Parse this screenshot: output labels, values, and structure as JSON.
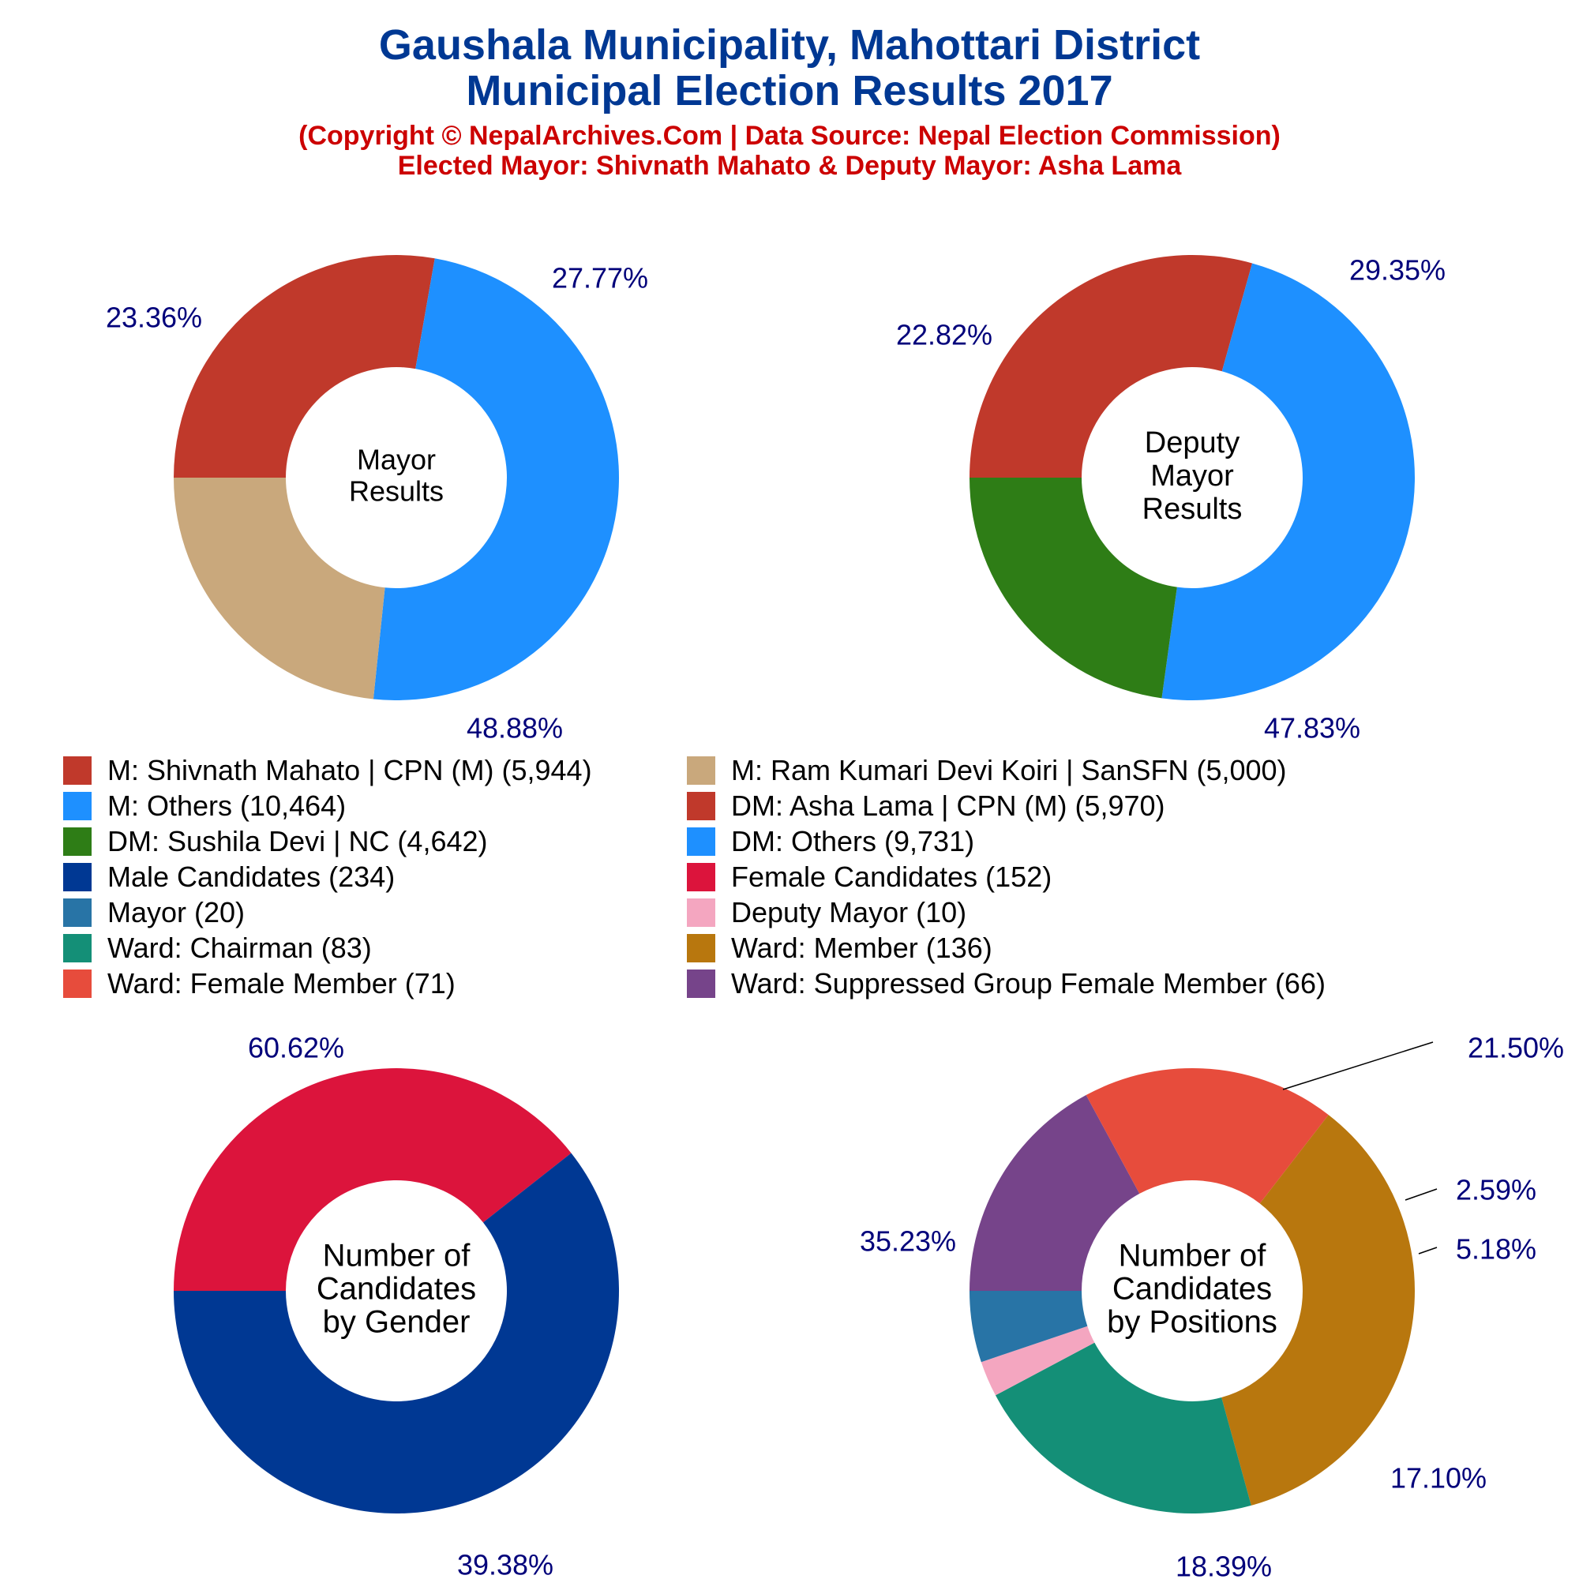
{
  "header": {
    "title_line1": "Gaushala Municipality, Mahottari District",
    "title_line2": "Municipal Election Results 2017",
    "subtitle_line1": "(Copyright © NepalArchives.Com | Data Source: Nepal Election Commission)",
    "subtitle_line2": "Elected Mayor: Shivnath Mahato & Deputy Mayor: Asha Lama"
  },
  "chart_data": [
    {
      "type": "pie",
      "title": "Mayor Results",
      "center_label": [
        "Mayor",
        "Results"
      ],
      "slices": [
        {
          "label": "M: Shivnath Mahato | CPN (M)",
          "value": 5944,
          "percent_label": "27.77%",
          "color": "#c0392b"
        },
        {
          "label": "M: Others",
          "value": 10464,
          "percent_label": "48.88%",
          "color": "#1e90ff"
        },
        {
          "label": "M: Ram Kumari Devi Koiri | SanSFN",
          "value": 5000,
          "percent_label": "23.36%",
          "color": "#c9a87c"
        }
      ]
    },
    {
      "type": "pie",
      "title": "Deputy Mayor Results",
      "center_label": [
        "Deputy",
        "Mayor",
        "Results"
      ],
      "slices": [
        {
          "label": "DM: Asha Lama | CPN (M)",
          "value": 5970,
          "percent_label": "29.35%",
          "color": "#c0392b"
        },
        {
          "label": "DM: Others",
          "value": 9731,
          "percent_label": "47.83%",
          "color": "#1e90ff"
        },
        {
          "label": "DM: Sushila Devi | NC",
          "value": 4642,
          "percent_label": "22.82%",
          "color": "#2e7d16"
        }
      ]
    },
    {
      "type": "pie",
      "title": "Number of Candidates by Gender",
      "center_label": [
        "Number of",
        "Candidates",
        "by Gender"
      ],
      "slices": [
        {
          "label": "Female Candidates",
          "value": 152,
          "percent_label": "39.38%",
          "color": "#dc143c"
        },
        {
          "label": "Male Candidates",
          "value": 234,
          "percent_label": "60.62%",
          "color": "#003893"
        }
      ]
    },
    {
      "type": "pie",
      "title": "Number of Candidates by Positions",
      "center_label": [
        "Number of",
        "Candidates",
        "by Positions"
      ],
      "slices": [
        {
          "label": "Ward: Suppressed Group Female Member",
          "value": 66,
          "percent_label": "17.10%",
          "color": "#76448a"
        },
        {
          "label": "Ward: Female Member",
          "value": 71,
          "percent_label": "18.39%",
          "color": "#e74c3c"
        },
        {
          "label": "Ward: Member",
          "value": 136,
          "percent_label": "35.23%",
          "color": "#b8770e"
        },
        {
          "label": "Ward: Chairman",
          "value": 83,
          "percent_label": "21.50%",
          "color": "#148f77"
        },
        {
          "label": "Deputy Mayor",
          "value": 10,
          "percent_label": "2.59%",
          "color": "#f4a6c0"
        },
        {
          "label": "Mayor",
          "value": 20,
          "percent_label": "5.18%",
          "color": "#2874a6"
        }
      ]
    }
  ],
  "legend": [
    {
      "text": "M: Shivnath Mahato | CPN (M) (5,944)",
      "color": "#c0392b"
    },
    {
      "text": "M: Ram Kumari Devi Koiri | SanSFN (5,000)",
      "color": "#c9a87c"
    },
    {
      "text": "M: Others (10,464)",
      "color": "#1e90ff"
    },
    {
      "text": "DM: Asha Lama | CPN (M) (5,970)",
      "color": "#c0392b"
    },
    {
      "text": "DM: Sushila Devi | NC (4,642)",
      "color": "#2e7d16"
    },
    {
      "text": "DM: Others (9,731)",
      "color": "#1e90ff"
    },
    {
      "text": "Male Candidates (234)",
      "color": "#003893"
    },
    {
      "text": "Female Candidates (152)",
      "color": "#dc143c"
    },
    {
      "text": "Mayor (20)",
      "color": "#2874a6"
    },
    {
      "text": "Deputy Mayor (10)",
      "color": "#f4a6c0"
    },
    {
      "text": "Ward: Chairman (83)",
      "color": "#148f77"
    },
    {
      "text": "Ward: Member (136)",
      "color": "#b8770e"
    },
    {
      "text": "Ward: Female Member (71)",
      "color": "#e74c3c"
    },
    {
      "text": "Ward: Suppressed Group Female Member (66)",
      "color": "#76448a"
    }
  ]
}
